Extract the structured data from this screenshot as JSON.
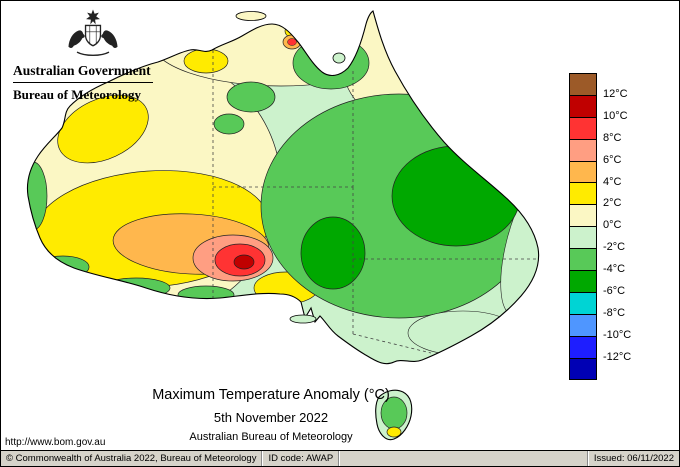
{
  "header": {
    "government": "Australian Government",
    "bureau": "Bureau of Meteorology"
  },
  "caption": {
    "title": "Maximum Temperature Anomaly (°C)",
    "date": "5th November 2022",
    "source": "Australian Bureau of Meteorology"
  },
  "url_text": "http://www.bom.gov.au",
  "legend": {
    "boundary_labels": [
      "12°C",
      "10°C",
      "8°C",
      "6°C",
      "4°C",
      "2°C",
      "0°C",
      "-2°C",
      "-4°C",
      "-6°C",
      "-8°C",
      "-10°C",
      "-12°C"
    ],
    "colors": [
      "#9c5a28",
      "#c00000",
      "#ff3333",
      "#ff9e82",
      "#ffb74d",
      "#ffeb00",
      "#fbf7c4",
      "#ccf2cc",
      "#58c958",
      "#00a800",
      "#00d4d4",
      "#4f96ff",
      "#1e1eff",
      "#0000b4"
    ]
  },
  "map_summary": {
    "type": "map",
    "region": "Australia",
    "depicts": "Maximum temperature anomaly for 5th November 2022",
    "major_features": [
      "Negative anomalies (-2 to -6°C) across most of eastern and central Australia",
      "Positive anomalies (+2 to +6°C) across interior Western Australia",
      "Strong positive core (+8 to +12°C) near the south coast around the WA/SA border",
      "Near-zero to +2°C along the northern coast, Cape York and west coast fringes",
      "Tasmania mostly 0 to -4°C with a small +2 to +4°C patch in the south"
    ]
  },
  "statusbar": {
    "copyright": "© Commonwealth of Australia 2022, Bureau of Meteorology",
    "id_code": "ID code: AWAP",
    "issued": "Issued: 06/11/2022"
  }
}
